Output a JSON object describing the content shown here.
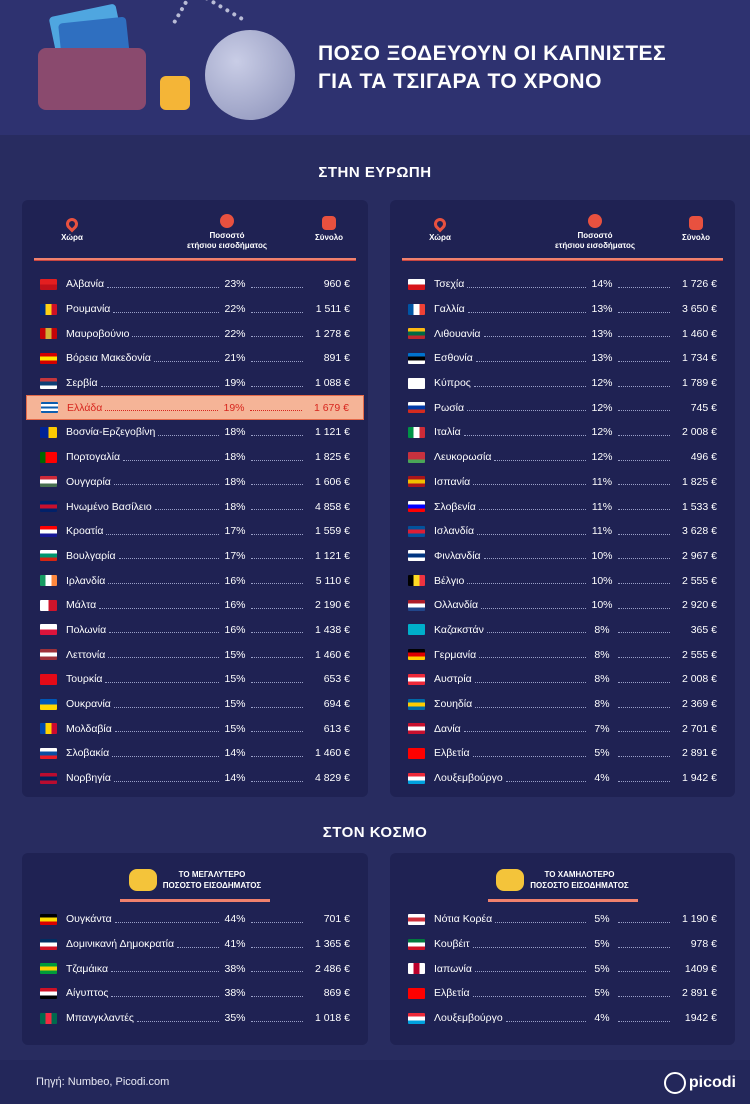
{
  "title": {
    "line1": "ΠΟΣΟ ΞΟΔΕΥΟΥΝ ΟΙ ΚΑΠΝΙΣΤΕΣ",
    "line2": "ΓΙΑ ΤΑ ΤΣΙΓΑΡΑ ΤΟ ΧΡΟΝΟ"
  },
  "europe": {
    "title": "ΣΤΗΝ ΕΥΡΩΠΗ",
    "headers": {
      "country": "Χώρα",
      "pct_line1": "Ποσοστό",
      "pct_line2": "ετήσιου εισοδήματος",
      "total": "Σύνολο"
    },
    "icons": {
      "country": "map-pin-icon",
      "pct": "percent-badge-icon",
      "total": "coin-stack-icon"
    },
    "left": [
      {
        "country": "Αλβανία",
        "pct": "23%",
        "total": "960 €",
        "flag": [
          "#e41e20",
          "#c0101a"
        ]
      },
      {
        "country": "Ρουμανία",
        "pct": "22%",
        "total": "1 511 €",
        "flag": [
          "#002b7f",
          "#fcd116",
          "#ce1126"
        ],
        "dir": "v"
      },
      {
        "country": "Μαυροβούνιο",
        "pct": "22%",
        "total": "1 278 €",
        "flag": [
          "#c40308",
          "#d4af37",
          "#c40308"
        ],
        "dir": "v"
      },
      {
        "country": "Βόρεια Μακεδονία",
        "pct": "21%",
        "total": "891 €",
        "flag": [
          "#d20000",
          "#ffe600",
          "#d20000"
        ]
      },
      {
        "country": "Σερβία",
        "pct": "19%",
        "total": "1 088 €",
        "flag": [
          "#c6363c",
          "#0c4076",
          "#ffffff"
        ]
      },
      {
        "country": "Ελλάδα",
        "pct": "19%",
        "total": "1 679 €",
        "flag": [
          "#0d5eaf",
          "#ffffff",
          "#0d5eaf",
          "#ffffff",
          "#0d5eaf"
        ],
        "highlight": true
      },
      {
        "country": "Βοσνία-Ερζεγοβίνη",
        "pct": "18%",
        "total": "1 121 €",
        "flag": [
          "#002395",
          "#fecb00"
        ],
        "dir": "v"
      },
      {
        "country": "Πορτογαλία",
        "pct": "18%",
        "total": "1 825 €",
        "flag": [
          "#006600",
          "#ff0000",
          "#ff0000"
        ],
        "dir": "v"
      },
      {
        "country": "Ουγγαρία",
        "pct": "18%",
        "total": "1 606 €",
        "flag": [
          "#ce2939",
          "#ffffff",
          "#477050"
        ]
      },
      {
        "country": "Ηνωμένο Βασίλειο",
        "pct": "18%",
        "total": "4 858 €",
        "flag": [
          "#012169",
          "#c8102e",
          "#012169"
        ]
      },
      {
        "country": "Κροατία",
        "pct": "17%",
        "total": "1 559 €",
        "flag": [
          "#ff0000",
          "#ffffff",
          "#171796"
        ]
      },
      {
        "country": "Βουλγαρία",
        "pct": "17%",
        "total": "1 121 €",
        "flag": [
          "#ffffff",
          "#00966e",
          "#d62612"
        ]
      },
      {
        "country": "Ιρλανδία",
        "pct": "16%",
        "total": "5 110 €",
        "flag": [
          "#169b62",
          "#ffffff",
          "#ff883e"
        ],
        "dir": "v"
      },
      {
        "country": "Μάλτα",
        "pct": "16%",
        "total": "2 190 €",
        "flag": [
          "#ffffff",
          "#cf142b"
        ],
        "dir": "v"
      },
      {
        "country": "Πολωνία",
        "pct": "16%",
        "total": "1 438 €",
        "flag": [
          "#ffffff",
          "#dc143c"
        ]
      },
      {
        "country": "Λεττονία",
        "pct": "15%",
        "total": "1 460 €",
        "flag": [
          "#9e3039",
          "#ffffff",
          "#9e3039"
        ]
      },
      {
        "country": "Τουρκία",
        "pct": "15%",
        "total": "653 €",
        "flag": [
          "#e30a17",
          "#e30a17"
        ]
      },
      {
        "country": "Ουκρανία",
        "pct": "15%",
        "total": "694 €",
        "flag": [
          "#0057b7",
          "#ffd700"
        ]
      },
      {
        "country": "Μολδαβία",
        "pct": "15%",
        "total": "613 €",
        "flag": [
          "#0046ae",
          "#ffd200",
          "#cc092f"
        ],
        "dir": "v"
      },
      {
        "country": "Σλοβακία",
        "pct": "14%",
        "total": "1 460 €",
        "flag": [
          "#ffffff",
          "#0b4ea2",
          "#ee1c25"
        ]
      },
      {
        "country": "Νορβηγία",
        "pct": "14%",
        "total": "4 829 €",
        "flag": [
          "#ba0c2f",
          "#00205b",
          "#ba0c2f"
        ]
      }
    ],
    "right": [
      {
        "country": "Τσεχία",
        "pct": "14%",
        "total": "1 726 €",
        "flag": [
          "#ffffff",
          "#d7141a"
        ]
      },
      {
        "country": "Γαλλία",
        "pct": "13%",
        "total": "3 650 €",
        "flag": [
          "#0055a4",
          "#ffffff",
          "#ef4135"
        ],
        "dir": "v"
      },
      {
        "country": "Λιθουανία",
        "pct": "13%",
        "total": "1 460 €",
        "flag": [
          "#fdb913",
          "#006a44",
          "#c1272d"
        ]
      },
      {
        "country": "Εσθονία",
        "pct": "13%",
        "total": "1 734 €",
        "flag": [
          "#0072ce",
          "#000000",
          "#ffffff"
        ]
      },
      {
        "country": "Κύπρος",
        "pct": "12%",
        "total": "1 789 €",
        "flag": [
          "#ffffff",
          "#ffffff"
        ]
      },
      {
        "country": "Ρωσία",
        "pct": "12%",
        "total": "745 €",
        "flag": [
          "#ffffff",
          "#0039a6",
          "#d52b1e"
        ]
      },
      {
        "country": "Ιταλία",
        "pct": "12%",
        "total": "2 008 €",
        "flag": [
          "#009246",
          "#ffffff",
          "#ce2b37"
        ],
        "dir": "v"
      },
      {
        "country": "Λευκορωσία",
        "pct": "12%",
        "total": "496 €",
        "flag": [
          "#c8313e",
          "#c8313e",
          "#4aa657"
        ]
      },
      {
        "country": "Ισπανία",
        "pct": "11%",
        "total": "1 825 €",
        "flag": [
          "#aa151b",
          "#f1bf00",
          "#aa151b"
        ]
      },
      {
        "country": "Σλοβενία",
        "pct": "11%",
        "total": "1 533 €",
        "flag": [
          "#ffffff",
          "#0000ff",
          "#ff0000"
        ]
      },
      {
        "country": "Ισλανδία",
        "pct": "11%",
        "total": "3 628 €",
        "flag": [
          "#02529c",
          "#dc1e35",
          "#02529c"
        ]
      },
      {
        "country": "Φινλανδία",
        "pct": "10%",
        "total": "2 967 €",
        "flag": [
          "#ffffff",
          "#003580",
          "#ffffff"
        ]
      },
      {
        "country": "Βέλγιο",
        "pct": "10%",
        "total": "2 555 €",
        "flag": [
          "#000000",
          "#fdda24",
          "#ef3340"
        ],
        "dir": "v"
      },
      {
        "country": "Ολλανδία",
        "pct": "10%",
        "total": "2 920 €",
        "flag": [
          "#ae1c28",
          "#ffffff",
          "#21468b"
        ]
      },
      {
        "country": "Καζακστάν",
        "pct": "8%",
        "total": "365 €",
        "flag": [
          "#00afca",
          "#00afca"
        ]
      },
      {
        "country": "Γερμανία",
        "pct": "8%",
        "total": "2 555 €",
        "flag": [
          "#000000",
          "#dd0000",
          "#ffce00"
        ]
      },
      {
        "country": "Αυστρία",
        "pct": "8%",
        "total": "2 008 €",
        "flag": [
          "#ed2939",
          "#ffffff",
          "#ed2939"
        ]
      },
      {
        "country": "Σουηδία",
        "pct": "8%",
        "total": "2 369 €",
        "flag": [
          "#006aa7",
          "#fecc00",
          "#006aa7"
        ]
      },
      {
        "country": "Δανία",
        "pct": "7%",
        "total": "2 701 €",
        "flag": [
          "#c8102e",
          "#ffffff",
          "#c8102e"
        ]
      },
      {
        "country": "Ελβετία",
        "pct": "5%",
        "total": "2 891 €",
        "flag": [
          "#ff0000",
          "#ff0000"
        ]
      },
      {
        "country": "Λουξεμβούργο",
        "pct": "4%",
        "total": "1 942 €",
        "flag": [
          "#ed2939",
          "#ffffff",
          "#00a1de"
        ]
      }
    ]
  },
  "world": {
    "title": "ΣΤΟΝ ΚΟΣΜΟ",
    "highest": {
      "line1": "ΤΟ ΜΕΓΑΛΥΤΕΡΟ",
      "line2": "ΠΟΣΟΣΤΟ ΕΙΣΟΔΗΜΑΤΟΣ",
      "icon": "coins-icon",
      "rows": [
        {
          "country": "Ουγκάντα",
          "pct": "44%",
          "total": "701 €",
          "flag": [
            "#000000",
            "#fcdc04",
            "#d90000"
          ]
        },
        {
          "country": "Δομινικανή Δημοκρατία",
          "pct": "41%",
          "total": "1 365 €",
          "flag": [
            "#002d62",
            "#ffffff",
            "#ce1126"
          ]
        },
        {
          "country": "Τζαμάικα",
          "pct": "38%",
          "total": "2 486 €",
          "flag": [
            "#009b3a",
            "#fed100",
            "#009b3a"
          ]
        },
        {
          "country": "Αίγυπτος",
          "pct": "38%",
          "total": "869 €",
          "flag": [
            "#ce1126",
            "#ffffff",
            "#000000"
          ]
        },
        {
          "country": "Μπανγκλαντές",
          "pct": "35%",
          "total": "1 018 €",
          "flag": [
            "#006a4e",
            "#f42a41",
            "#006a4e"
          ],
          "dir": "v"
        }
      ]
    },
    "lowest": {
      "line1": "ΤΟ ΧΑΜΗΛΟΤΕΡΟ",
      "line2": "ΠΟΣΟΣΤΟ ΕΙΣΟΔΗΜΑΤΟΣ",
      "icon": "coins-icon",
      "rows": [
        {
          "country": "Νότια Κορέα",
          "pct": "5%",
          "total": "1 190 €",
          "flag": [
            "#ffffff",
            "#cd2e3a",
            "#ffffff"
          ]
        },
        {
          "country": "Κουβέιτ",
          "pct": "5%",
          "total": "978 €",
          "flag": [
            "#007a3d",
            "#ffffff",
            "#ce1126"
          ]
        },
        {
          "country": "Ιαπωνία",
          "pct": "5%",
          "total": "1409 €",
          "flag": [
            "#ffffff",
            "#bc002d",
            "#ffffff"
          ],
          "dir": "v"
        },
        {
          "country": "Ελβετία",
          "pct": "5%",
          "total": "2 891 €",
          "flag": [
            "#ff0000",
            "#ff0000"
          ]
        },
        {
          "country": "Λουξεμβούργο",
          "pct": "4%",
          "total": "1942 €",
          "flag": [
            "#ed2939",
            "#ffffff",
            "#00a1de"
          ]
        }
      ]
    }
  },
  "footer": {
    "source": "Πηγή: Numbeo, Picodi.com",
    "logo": "picodi"
  },
  "colors": {
    "background": "#282c60",
    "panel": "#1f2253",
    "accent": "#f0816d",
    "highlight_bg": "#f5b497",
    "highlight_text": "#d7261e"
  }
}
